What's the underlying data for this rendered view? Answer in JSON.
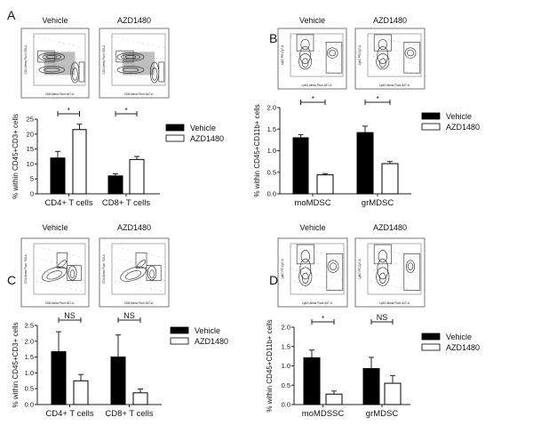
{
  "colors": {
    "vehicle": "#000000",
    "azd1480": "#ffffff",
    "axis": "#222222"
  },
  "legend": [
    "Vehicle",
    "AZD1480"
  ],
  "chart_data": [
    {
      "panel": "A",
      "type": "bar",
      "flow_titles": [
        "Vehicle",
        "AZD1480"
      ],
      "flow_xlabel": "CD8 Alexa Fluor 647-A",
      "flow_ylabel": "CD4 Alexa Fluor 700-A",
      "ylabel": "% within CD45+CD3+ cells",
      "categories": [
        "CD4+ T cells",
        "CD8+ T cells"
      ],
      "ylim": [
        0,
        25
      ],
      "yticks": [
        "0",
        "5",
        "10",
        "15",
        "20",
        "25"
      ],
      "series": [
        {
          "name": "Vehicle",
          "values": [
            12,
            6
          ],
          "errors": [
            2.2,
            0.7
          ]
        },
        {
          "name": "AZD1480",
          "values": [
            21.5,
            11.5
          ],
          "errors": [
            1.8,
            1.0
          ]
        }
      ],
      "significance": [
        "*",
        "*"
      ],
      "legend_position": "right"
    },
    {
      "panel": "B",
      "type": "bar",
      "flow_titles": [
        "Vehicle",
        "AZD1480"
      ],
      "flow_xlabel": "Ly6G Alexa Fluor 647-A",
      "flow_ylabel": "Ly6C PE-Cy7-A",
      "ylabel": "% within CD45+CD11b+ cells",
      "categories": [
        "moMDSC",
        "grMDSC"
      ],
      "ylim": [
        0,
        2.0
      ],
      "yticks": [
        "0.0",
        "0.5",
        "1.0",
        "1.5",
        "2.0"
      ],
      "series": [
        {
          "name": "Vehicle",
          "values": [
            1.3,
            1.42
          ],
          "errors": [
            0.07,
            0.15
          ]
        },
        {
          "name": "AZD1480",
          "values": [
            0.44,
            0.7
          ],
          "errors": [
            0.03,
            0.05
          ]
        }
      ],
      "significance": [
        "*",
        "*"
      ],
      "legend_position": "right"
    },
    {
      "panel": "C",
      "type": "bar",
      "flow_titles": [
        "Vehicle",
        "AZD1480"
      ],
      "flow_xlabel": "CD8 Alexa Fluor 647-A",
      "flow_ylabel": "CD4 Alexa Fluor 700-A",
      "ylabel": "% within CD45+CD3+ cells",
      "categories": [
        "CD4+ T cells",
        "CD8+ T cells"
      ],
      "ylim": [
        0,
        2.5
      ],
      "yticks": [
        "0.0",
        "0.5",
        "1.0",
        "1.5",
        "2.0",
        "2.5"
      ],
      "series": [
        {
          "name": "Vehicle",
          "values": [
            1.67,
            1.5
          ],
          "errors": [
            0.63,
            0.7
          ]
        },
        {
          "name": "AZD1480",
          "values": [
            0.75,
            0.37
          ],
          "errors": [
            0.2,
            0.12
          ]
        }
      ],
      "significance": [
        "NS",
        "NS"
      ],
      "legend_position": "right"
    },
    {
      "panel": "D",
      "type": "bar",
      "flow_titles": [
        "Vehicle",
        "AZD1480"
      ],
      "flow_xlabel": "Ly6G Alexa Fluor 647-A",
      "flow_ylabel": "Ly6C PE-Cy7-A",
      "ylabel": "% within CD45+CD11b+ cells",
      "categories": [
        "moMDSSC",
        "grMDSC"
      ],
      "ylim": [
        0,
        2.0
      ],
      "yticks": [
        "0.0",
        "0.5",
        "1.0",
        "1.5",
        "2.0"
      ],
      "series": [
        {
          "name": "Vehicle",
          "values": [
            1.21,
            0.93
          ],
          "errors": [
            0.2,
            0.29
          ]
        },
        {
          "name": "AZD1480",
          "values": [
            0.27,
            0.55
          ],
          "errors": [
            0.08,
            0.2
          ]
        }
      ],
      "significance": [
        "*",
        "NS"
      ],
      "legend_position": "right"
    }
  ]
}
